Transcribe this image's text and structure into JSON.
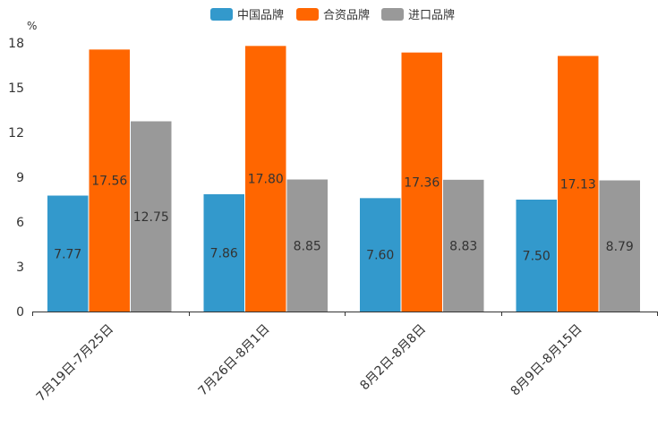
{
  "chart_data": {
    "type": "bar",
    "unit": "%",
    "categories": [
      "7月19日-7月25日",
      "7月26日-8月1日",
      "8月2日-8月8日",
      "8月9日-8月15日"
    ],
    "series": [
      {
        "name": "中国品牌",
        "color": "#3399cc",
        "values": [
          7.77,
          7.86,
          7.6,
          7.5
        ],
        "labels": [
          "7.77",
          "7.86",
          "7.60",
          "7.50"
        ]
      },
      {
        "name": "合资品牌",
        "color": "#ff6600",
        "values": [
          17.56,
          17.8,
          17.36,
          17.13
        ],
        "labels": [
          "17.56",
          "17.80",
          "17.36",
          "17.13"
        ]
      },
      {
        "name": "进口品牌",
        "color": "#999999",
        "values": [
          12.75,
          8.85,
          8.83,
          8.79
        ],
        "labels": [
          "12.75",
          "8.85",
          "8.83",
          "8.79"
        ]
      }
    ],
    "yticks": [
      "0",
      "3",
      "6",
      "9",
      "12",
      "15",
      "18"
    ],
    "ylim": [
      0,
      18
    ],
    "legend": "top-center",
    "grid": false
  }
}
